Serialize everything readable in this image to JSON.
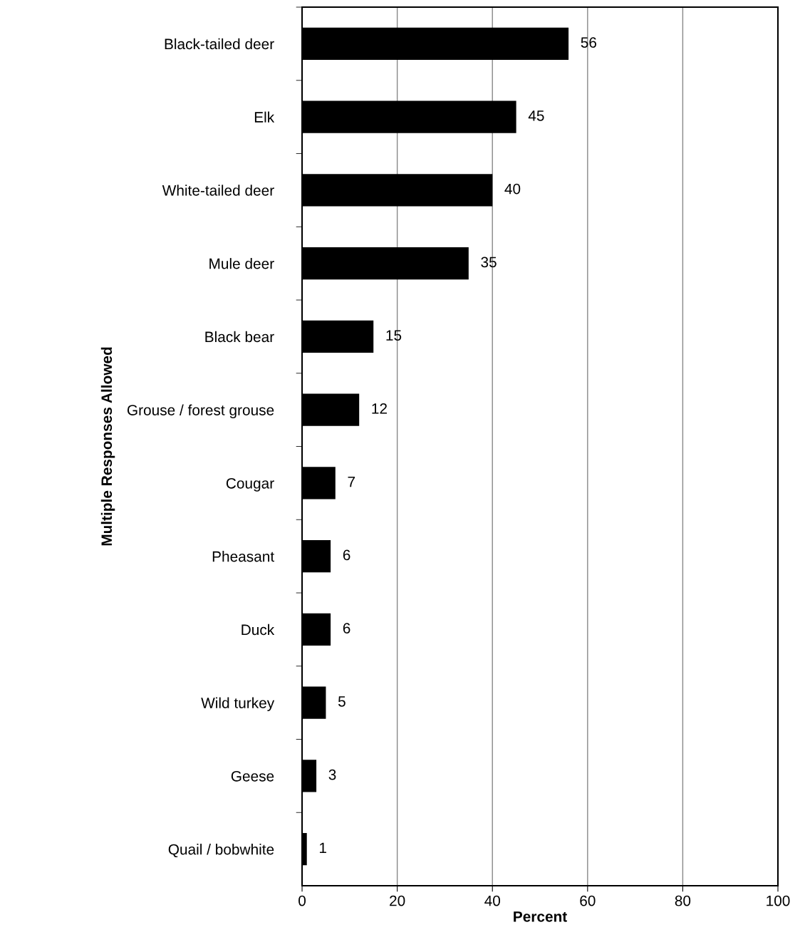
{
  "chart_data": {
    "type": "bar",
    "orientation": "horizontal",
    "xlabel": "Percent",
    "ylabel": "Multiple Responses Allowed",
    "categories": [
      "Black-tailed deer",
      "Elk",
      "White-tailed deer",
      "Mule deer",
      "Black bear",
      "Grouse / forest grouse",
      "Cougar",
      "Pheasant",
      "Duck",
      "Wild turkey",
      "Geese",
      "Quail / bobwhite"
    ],
    "values": [
      56,
      45,
      40,
      35,
      15,
      12,
      7,
      6,
      6,
      5,
      3,
      1
    ],
    "color": "#000000",
    "xlim": [
      0,
      100
    ],
    "xticks": [
      0,
      20,
      40,
      60,
      80,
      100
    ],
    "grid": "x",
    "data_labels": true
  }
}
